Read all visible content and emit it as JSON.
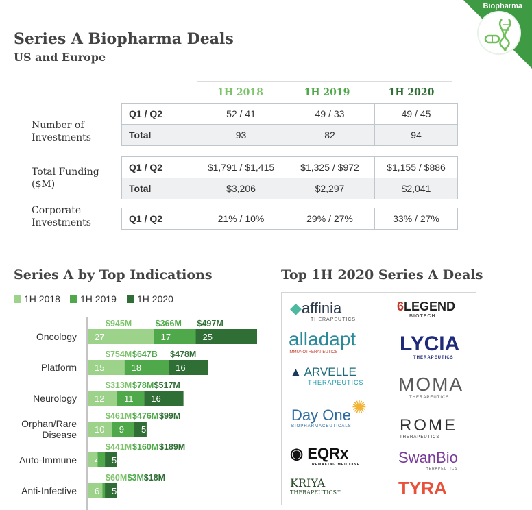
{
  "header": {
    "title": "Series A Biopharma Deals",
    "subtitle": "US and Europe",
    "corner_label": "Biopharma"
  },
  "colors": {
    "h2018": "#9dd28a",
    "h2019": "#4fa94a",
    "h2020": "#2f6e35",
    "accent": "#3f9a44"
  },
  "table": {
    "years": [
      "1H 2018",
      "1H 2019",
      "1H 2020"
    ],
    "groups": [
      {
        "label": "Number of Investments",
        "rows": [
          {
            "label": "Q1 / Q2",
            "values": [
              "52 / 41",
              "49 / 33",
              "49 / 45"
            ]
          },
          {
            "label": "Total",
            "values": [
              "93",
              "82",
              "94"
            ]
          }
        ]
      },
      {
        "label": "Total Funding ($M)",
        "rows": [
          {
            "label": "Q1 / Q2",
            "values": [
              "$1,791 / $1,415",
              "$1,325 / $972",
              "$1,155 / $886"
            ]
          },
          {
            "label": "Total",
            "values": [
              "$3,206",
              "$2,297",
              "$2,041"
            ]
          }
        ]
      },
      {
        "label": "Corporate Investments",
        "rows": [
          {
            "label": "Q1 / Q2",
            "values": [
              "21% / 10%",
              "29% / 27%",
              "33% / 27%"
            ]
          }
        ]
      }
    ]
  },
  "chart_data": {
    "type": "bar",
    "title": "Series A by Top Indications",
    "stacked": true,
    "orientation": "horizontal",
    "categories": [
      "Oncology",
      "Platform",
      "Neurology",
      "Orphan/Rare Disease",
      "Auto-Immune",
      "Anti-Infective"
    ],
    "series": [
      {
        "name": "1H 2018",
        "values": [
          27,
          15,
          12,
          10,
          4,
          6
        ],
        "funding": [
          "$945M",
          "$754M",
          "$313M",
          "$461M",
          "$441M",
          "$60M"
        ]
      },
      {
        "name": "1H 2019",
        "values": [
          17,
          18,
          11,
          9,
          3,
          1
        ],
        "funding": [
          "$366M",
          "$647B",
          "$78M",
          "$476M",
          "$160M",
          "$3M"
        ]
      },
      {
        "name": "1H 2020",
        "values": [
          25,
          16,
          16,
          5,
          5,
          5
        ],
        "funding": [
          "$497M",
          "$478M",
          "$517M",
          "$99M",
          "$189M",
          "$18M"
        ]
      }
    ],
    "legend": "top-left"
  },
  "deals": {
    "title": "Top 1H 2020 Series A Deals",
    "logos": [
      {
        "name": "affinia",
        "sub": "THERAPEUTICS"
      },
      {
        "name": "LEGEND",
        "sub": "BIOTECH"
      },
      {
        "name": "alladapt",
        "sub": "IMMUNOTHERAPEUTICS"
      },
      {
        "name": "LYCIA",
        "sub": "THERAPEUTICS"
      },
      {
        "name": "ARVELLE",
        "sub": "THERAPEUTICS"
      },
      {
        "name": "MOMA",
        "sub": "THERAPEUTICS"
      },
      {
        "name": "Day One",
        "sub": "BIOPHARMACEUTICALS"
      },
      {
        "name": "ROME",
        "sub": "THERAPEUTICS"
      },
      {
        "name": "EQRx",
        "sub": "REMAKING MEDICINE"
      },
      {
        "name": "SwanBio",
        "sub": "THERAPEUTICS"
      },
      {
        "name": "KRIYA",
        "sub": "THERAPEUTICS™"
      },
      {
        "name": "TYRA",
        "sub": ""
      }
    ]
  }
}
